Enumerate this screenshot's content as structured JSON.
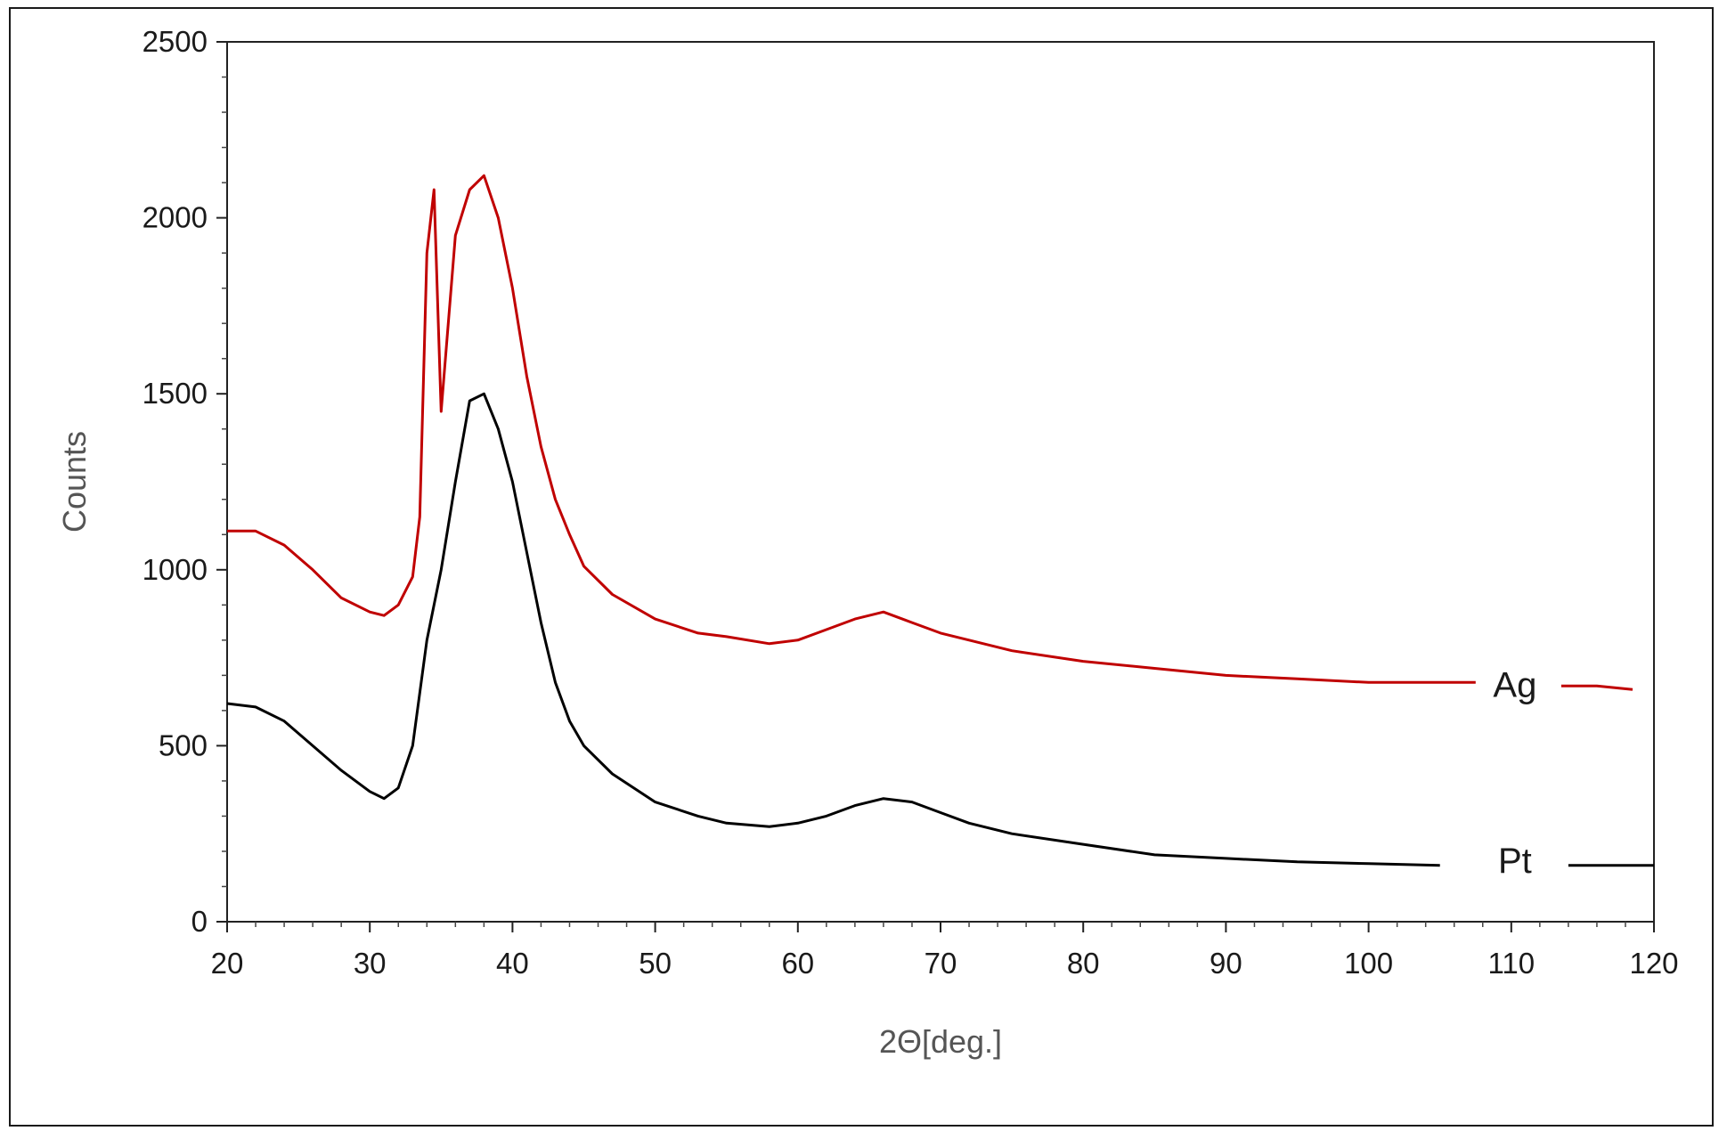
{
  "chart_data": {
    "type": "line",
    "xlabel": "2Θ[deg.]",
    "ylabel": "Counts",
    "xlim": [
      20,
      120
    ],
    "ylim": [
      0,
      2500
    ],
    "xticks": [
      20,
      30,
      40,
      50,
      60,
      70,
      80,
      90,
      100,
      110,
      120
    ],
    "yticks": [
      0,
      500,
      1000,
      1500,
      2000,
      2500
    ],
    "grid": false,
    "legend": "inline labels at right end of each curve",
    "series": [
      {
        "name": "Ag",
        "color": "#c00000",
        "label_at": [
          113.5,
          680
        ],
        "x": [
          20,
          22,
          24,
          26,
          28,
          30,
          31,
          32,
          33,
          33.5,
          34,
          34.5,
          35,
          35.5,
          36,
          37,
          38,
          39,
          40,
          41,
          42,
          43,
          44,
          45,
          47,
          50,
          53,
          55,
          58,
          60,
          62,
          64,
          66,
          68,
          70,
          72,
          75,
          80,
          85,
          90,
          95,
          100,
          105,
          107.5,
          113.5,
          116,
          118.5
        ],
        "y": [
          1110,
          1110,
          1070,
          1000,
          920,
          880,
          870,
          900,
          980,
          1150,
          1900,
          2080,
          1450,
          1700,
          1950,
          2080,
          2120,
          2000,
          1800,
          1550,
          1350,
          1200,
          1100,
          1010,
          930,
          860,
          820,
          810,
          790,
          800,
          830,
          860,
          880,
          850,
          820,
          800,
          770,
          740,
          720,
          700,
          690,
          680,
          680,
          680,
          670,
          670,
          660
        ]
      },
      {
        "name": "Pt",
        "color": "#000000",
        "label_at": [
          113.5,
          180
        ],
        "x": [
          20,
          22,
          24,
          26,
          28,
          30,
          31,
          32,
          33,
          34,
          35,
          36,
          37,
          38,
          39,
          40,
          41,
          42,
          43,
          44,
          45,
          47,
          50,
          53,
          55,
          58,
          60,
          62,
          64,
          66,
          68,
          70,
          72,
          75,
          80,
          85,
          90,
          95,
          100,
          105,
          108,
          114,
          117,
          120
        ],
        "y": [
          620,
          610,
          570,
          500,
          430,
          370,
          350,
          380,
          500,
          800,
          1000,
          1250,
          1480,
          1500,
          1400,
          1250,
          1050,
          850,
          680,
          570,
          500,
          420,
          340,
          300,
          280,
          270,
          280,
          300,
          330,
          350,
          340,
          310,
          280,
          250,
          220,
          190,
          180,
          170,
          165,
          160,
          160,
          160,
          160,
          160
        ]
      }
    ]
  }
}
